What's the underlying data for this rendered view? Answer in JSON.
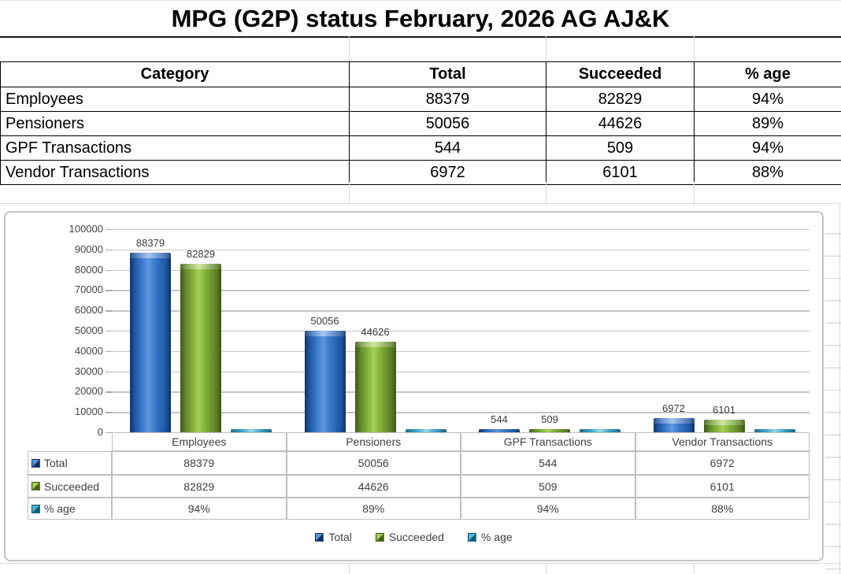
{
  "title": "MPG (G2P) status February, 2026 AG AJ&K",
  "summary_table": {
    "headers": [
      "Category",
      "Total",
      "Succeeded",
      "% age"
    ],
    "rows": [
      {
        "category": "Employees",
        "total": "88379",
        "succeeded": "82829",
        "pct": "94%"
      },
      {
        "category": "Pensioners",
        "total": "50056",
        "succeeded": "44626",
        "pct": "89%"
      },
      {
        "category": "GPF Transactions",
        "total": "544",
        "succeeded": "509",
        "pct": "94%"
      },
      {
        "category": "Vendor Transactions",
        "total": "6972",
        "succeeded": "6101",
        "pct": "88%"
      }
    ]
  },
  "chart_data": {
    "type": "bar",
    "title": "",
    "categories": [
      "Employees",
      "Pensioners",
      "GPF Transactions",
      "Vendor Transactions"
    ],
    "series": [
      {
        "name": "Total",
        "color": "#2E6DBE",
        "values": [
          88379,
          50056,
          544,
          6972
        ],
        "data_labels": [
          "88379",
          "50056",
          "544",
          "6972"
        ]
      },
      {
        "name": "Succeeded",
        "color": "#83B13A",
        "values": [
          82829,
          44626,
          509,
          6101
        ],
        "data_labels": [
          "82829",
          "44626",
          "509",
          "6101"
        ]
      },
      {
        "name": "% age",
        "color": "#3FA9CE",
        "values": [
          94,
          89,
          94,
          88
        ],
        "table_display": [
          "94%",
          "89%",
          "94%",
          "88%"
        ]
      }
    ],
    "y_axis": {
      "min": 0,
      "max": 100000,
      "step": 10000,
      "tick_labels": [
        "100000",
        "90000",
        "80000",
        "70000",
        "60000",
        "50000",
        "40000",
        "30000",
        "20000",
        "10000",
        "0"
      ]
    },
    "legend": {
      "position": "bottom",
      "items": [
        "Total",
        "Succeeded",
        "% age"
      ]
    },
    "grid": "horizontal",
    "data_table_shown": true
  }
}
